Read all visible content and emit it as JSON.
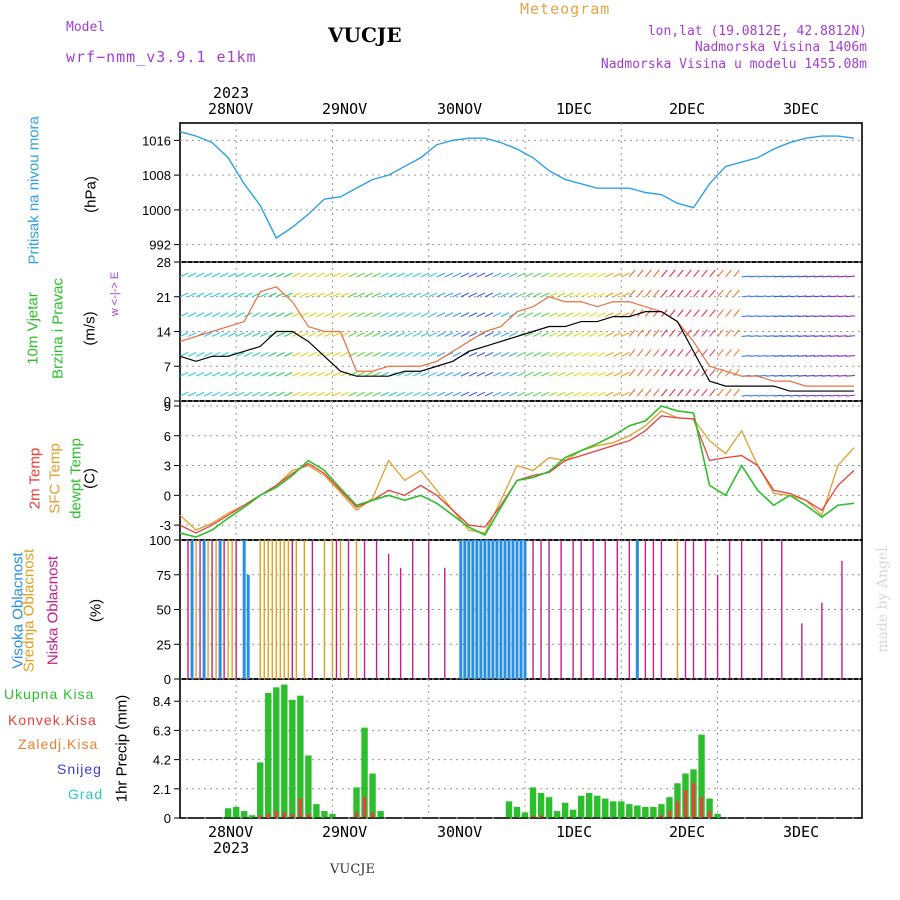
{
  "header": {
    "model_label": "Model",
    "model_name": "wrf−nmm_v3.9.1  e1km",
    "station": "VUCJE",
    "product": "Meteogram",
    "coords": "lon,lat (19.0812E, 42.8812N)",
    "altitude": "Nadmorska Visina 1406m",
    "model_altitude": "Nadmorska Visina u modelu 1455.08m",
    "footer_station": "VUCJE",
    "credit": "made by Angel"
  },
  "time_axis": {
    "year": "2023",
    "day_labels": [
      "28NOV",
      "29NOV",
      "30NOV",
      "1DEC",
      "2DEC",
      "3DEC"
    ]
  },
  "panel_labels": {
    "pressure": {
      "name": "Pritisak na nivou mora",
      "unit": "(hPa)"
    },
    "wind": {
      "line1": "10m Vjetar",
      "line2": "Brzina i Pravac",
      "unit": "(m/s)",
      "compass": "w <-|-> E"
    },
    "temp": {
      "l1": "2m Temp",
      "l2": "SFC Temp",
      "l3": "dewpt Temp",
      "unit": "(C)"
    },
    "cloud": {
      "l1": "Visoka Oblacnost",
      "l2": "Srednja Oblacnost",
      "l3": "Niska Oblacnost",
      "unit": "(%)"
    },
    "precip": {
      "legend": [
        "Ukupna Kisa",
        "Konvek.Kisa",
        "Zaledj.Kisa",
        "Snijeg",
        "Grad"
      ],
      "unit": "1hr Precip (mm)"
    }
  },
  "colors": {
    "pressure": "#2fa0e6",
    "t2m": "#e8403a",
    "sfc": "#e0a030",
    "dew": "#2cbf2c",
    "high_cloud": "#2a8ee0",
    "mid_cloud": "#e0a020",
    "low_cloud": "#c0208a",
    "total_precip": "#2cbf2c",
    "conv_precip": "#e8403a",
    "frz_precip": "#f08030",
    "snow": "#3c3cd8",
    "graupel": "#2cc8c8"
  },
  "chart_data": [
    {
      "type": "line",
      "id": "pressure",
      "ylabel": "(hPa)",
      "yticks": [
        992,
        1000,
        1008,
        1016
      ],
      "ylim": [
        988,
        1020
      ],
      "x": [
        0,
        4,
        8,
        12,
        16,
        20,
        24,
        28,
        32,
        36,
        40,
        44,
        48,
        52,
        56,
        60,
        64,
        68,
        72,
        76,
        80,
        84,
        88,
        92,
        96,
        100,
        104,
        108,
        112,
        116,
        120,
        124,
        128,
        132,
        136,
        140,
        144,
        148,
        152,
        156,
        160,
        164,
        168
      ],
      "series": [
        {
          "name": "",
          "values": [
            1018,
            1017,
            1015.5,
            1012,
            1006,
            1001,
            993.5,
            996,
            999,
            1002.5,
            1003,
            1005,
            1007,
            1008,
            1010,
            1012,
            1015,
            1016,
            1016.5,
            1016.5,
            1015.5,
            1014,
            1012,
            1009,
            1007,
            1006,
            1005,
            1005,
            1005,
            1004,
            1003.5,
            1001.5,
            1000.5,
            1006,
            1010,
            1011,
            1012,
            1014,
            1015.5,
            1016.5,
            1017,
            1017,
            1016.5
          ]
        }
      ],
      "grid": true
    },
    {
      "type": "line",
      "id": "wind",
      "ylabel": "(m/s)",
      "yticks": [
        0,
        7,
        14,
        21,
        28
      ],
      "ylim": [
        0,
        28
      ],
      "x": [
        0,
        4,
        8,
        12,
        16,
        20,
        24,
        28,
        32,
        36,
        40,
        44,
        48,
        52,
        56,
        60,
        64,
        68,
        72,
        76,
        80,
        84,
        88,
        92,
        96,
        100,
        104,
        108,
        112,
        116,
        120,
        124,
        128,
        132,
        136,
        140,
        144,
        148,
        152,
        156,
        160,
        164,
        168
      ],
      "series": [
        {
          "name": "",
          "values": [
            9,
            8,
            9,
            9,
            10,
            11,
            14,
            14,
            12,
            9,
            6,
            5,
            5,
            5,
            6,
            6,
            7,
            8,
            10,
            11,
            12,
            13,
            14,
            15,
            15,
            16,
            16,
            17,
            17,
            18,
            18,
            16,
            10,
            4,
            3,
            3,
            3,
            3,
            2,
            2,
            2,
            2,
            2
          ]
        },
        {
          "name": "",
          "values": [
            12,
            13,
            14,
            15,
            16,
            22,
            23,
            20,
            15,
            14,
            14,
            6,
            6,
            7,
            7,
            7,
            8,
            10,
            12,
            14,
            15,
            18,
            19,
            21,
            20,
            20,
            19,
            20,
            20,
            19,
            18,
            16,
            12,
            7,
            6,
            5,
            5,
            4,
            4,
            3,
            3,
            3,
            3
          ]
        }
      ],
      "grid": true
    },
    {
      "type": "line",
      "id": "temperature",
      "ylabel": "(C)",
      "yticks": [
        -3,
        0,
        3,
        6,
        9
      ],
      "ylim": [
        -4.5,
        9.5
      ],
      "x": [
        0,
        4,
        8,
        12,
        16,
        20,
        24,
        28,
        32,
        36,
        40,
        44,
        48,
        52,
        56,
        60,
        64,
        68,
        72,
        76,
        80,
        84,
        88,
        92,
        96,
        100,
        104,
        108,
        112,
        116,
        120,
        124,
        128,
        132,
        136,
        140,
        144,
        148,
        152,
        156,
        160,
        164,
        168
      ],
      "series": [
        {
          "name": "2m Temp",
          "values": [
            -3,
            -3.8,
            -3,
            -2,
            -1,
            0,
            1,
            2.2,
            3.2,
            2.2,
            0.5,
            -1.2,
            -0.5,
            0.5,
            0,
            1,
            0,
            -1.5,
            -3,
            -3.2,
            -1,
            1.5,
            2,
            2.3,
            3.5,
            4,
            4.5,
            5,
            5.5,
            6.5,
            8,
            7.8,
            7.7,
            3.5,
            3.8,
            4,
            3,
            0.5,
            0.2,
            -0.5,
            -1.5,
            1,
            2.5
          ]
        },
        {
          "name": "SFC Temp",
          "values": [
            -2,
            -3.5,
            -2.8,
            -1.8,
            -1,
            0,
            1,
            2.5,
            3,
            2,
            0.3,
            -1.5,
            -0.3,
            3.5,
            1.5,
            2.5,
            0.5,
            -1.5,
            -3.5,
            -3.8,
            -0.5,
            3,
            2.5,
            3.8,
            3.5,
            4.5,
            5,
            5.3,
            6,
            7,
            8.5,
            7.8,
            7.7,
            5.5,
            4.2,
            6.5,
            3,
            0.2,
            0,
            -0.5,
            -2,
            3,
            4.8
          ]
        },
        {
          "name": "dewpt Temp",
          "values": [
            -3.8,
            -4.2,
            -3.5,
            -2.3,
            -1.2,
            0,
            0.8,
            2,
            3.5,
            2.5,
            0.7,
            -1,
            -0.5,
            0,
            -0.5,
            0,
            -0.8,
            -2,
            -3.2,
            -4,
            -1.2,
            1.5,
            1.8,
            2.4,
            3.8,
            4.5,
            5.2,
            6,
            7,
            7.5,
            9,
            8.5,
            8.3,
            1,
            0,
            3,
            0.5,
            -1,
            0,
            -1,
            -2.2,
            -1,
            -0.8
          ]
        }
      ],
      "grid": true
    },
    {
      "type": "bar",
      "id": "cloud",
      "ylabel": "(%)",
      "yticks": [
        0,
        25,
        50,
        75,
        100
      ],
      "ylim": [
        0,
        100
      ],
      "series": [
        {
          "name": "Visoka Oblacnost",
          "values": "mostly 100% bursts near 28NOV early and 30NOV-1DEC"
        },
        {
          "name": "Srednja Oblacnost",
          "values": "intermittent 100% spikes"
        },
        {
          "name": "Niska Oblacnost",
          "values": "intermittent 30-100% spikes"
        }
      ],
      "grid": true
    },
    {
      "type": "bar",
      "id": "precip",
      "ylabel": "1hr Precip (mm)",
      "yticks": [
        0,
        2.1,
        4.2,
        6.3,
        8.4
      ],
      "ylim": [
        0,
        10
      ],
      "x": [
        12,
        14,
        16,
        18,
        20,
        22,
        24,
        26,
        28,
        30,
        32,
        34,
        36,
        38,
        40,
        42,
        44,
        46,
        48,
        50,
        52,
        54,
        56,
        58,
        60,
        62,
        64,
        66,
        68,
        70,
        72,
        74,
        76,
        78,
        80,
        82,
        84,
        86,
        88,
        90,
        92,
        94,
        96,
        98,
        100,
        102,
        104,
        106,
        108,
        110,
        112,
        114,
        116,
        118,
        120,
        122,
        124,
        126,
        128,
        130,
        132,
        134
      ],
      "series": [
        {
          "name": "Ukupna Kisa",
          "values": [
            0.7,
            0.8,
            0.5,
            0.2,
            4,
            9,
            9.4,
            9.6,
            8.5,
            8.8,
            4.5,
            1,
            0.5,
            0.3,
            0,
            0,
            2.2,
            6.5,
            3.2,
            0.5,
            0,
            0,
            0,
            0,
            0,
            0,
            0,
            0,
            0,
            0,
            0,
            0,
            0,
            0,
            0,
            1.2,
            0.8,
            0.4,
            2.2,
            1.8,
            1.5,
            0.5,
            1.1,
            0.6,
            1.6,
            1.8,
            1.6,
            1.4,
            1.2,
            1.2,
            1,
            0.9,
            0.8,
            0.8,
            1,
            1.5,
            2.5,
            3.2,
            3.5,
            6,
            1.4,
            0.3
          ]
        },
        {
          "name": "Konvek.Kisa",
          "values": [
            0,
            0,
            0,
            0,
            0.2,
            0.3,
            0.5,
            0.4,
            0.3,
            1.4,
            0.3,
            0,
            0,
            0,
            0,
            0,
            0.4,
            1.5,
            0.4,
            0,
            0,
            0,
            0,
            0,
            0,
            0,
            0,
            0,
            0,
            0,
            0,
            0,
            0,
            0,
            0,
            0,
            0,
            0,
            0.2,
            0.2,
            0,
            0,
            0,
            0,
            0,
            0,
            0,
            0,
            0,
            0,
            0,
            0,
            0,
            0,
            0.2,
            0.5,
            1.2,
            2,
            2.5,
            1.5,
            0.5,
            0
          ]
        }
      ],
      "grid": true
    }
  ]
}
